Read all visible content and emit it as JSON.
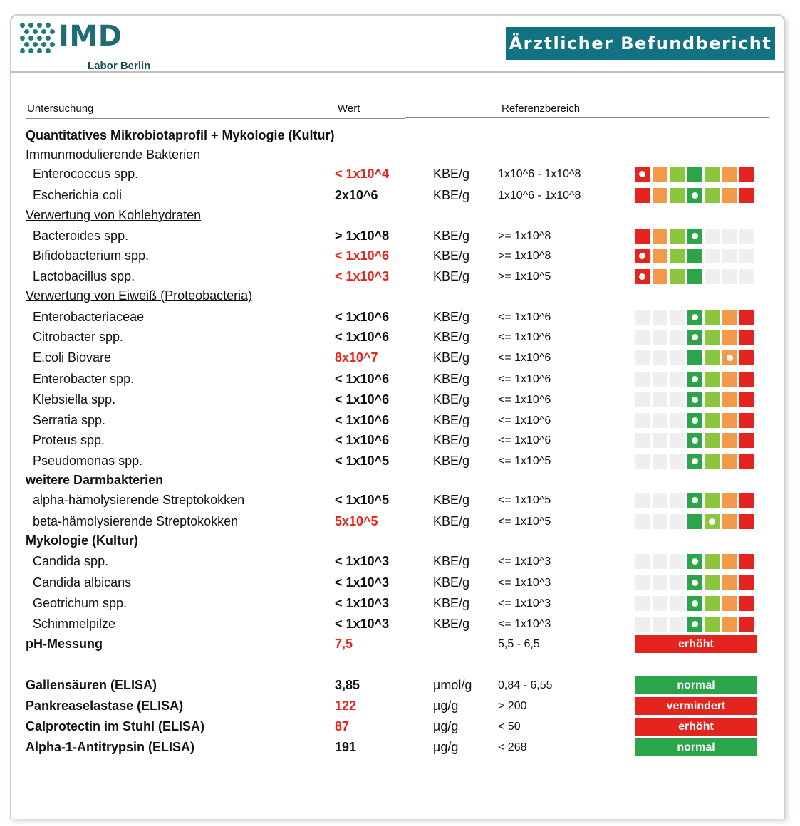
{
  "header": {
    "logo_name": "IMD",
    "logo_sub": "Labor Berlin",
    "title": "Ärztlicher Befundbericht"
  },
  "columns": {
    "test": "Untersuchung",
    "value": "Wert",
    "reference": "Referenzbereich"
  },
  "colors": {
    "red": "#e4241f",
    "orange": "#f29a4a",
    "lightgreen": "#8cc63f",
    "green": "#2ca44a",
    "empty": "#efefef",
    "teal": "#137282"
  },
  "rows": [
    {
      "kind": "section",
      "text": "Quantitatives Mikrobiotaprofil + Mykologie (Kultur)"
    },
    {
      "kind": "subsection",
      "text": "Immunmodulierende Bakterien"
    },
    {
      "kind": "item",
      "name": "Enterococcus spp.",
      "value": "< 1x10^4",
      "flag": true,
      "unit": "KBE/g",
      "ref": "1x10^6 - 1x10^8",
      "scale": "full",
      "marker": 0
    },
    {
      "kind": "item",
      "name": "Escherichia coli",
      "value": "2x10^6",
      "flag": false,
      "unit": "KBE/g",
      "ref": "1x10^6 - 1x10^8",
      "scale": "full",
      "marker": 3
    },
    {
      "kind": "subsection",
      "text": "Verwertung von Kohlehydraten"
    },
    {
      "kind": "item",
      "name": "Bacteroides spp.",
      "value": "> 1x10^8",
      "flag": false,
      "unit": "KBE/g",
      "ref": ">= 1x10^8",
      "scale": "low",
      "marker": 3
    },
    {
      "kind": "item",
      "name": "Bifidobacterium spp.",
      "value": "< 1x10^6",
      "flag": true,
      "unit": "KBE/g",
      "ref": ">= 1x10^8",
      "scale": "low",
      "marker": 0
    },
    {
      "kind": "item",
      "name": "Lactobacillus spp.",
      "value": "< 1x10^3",
      "flag": true,
      "unit": "KBE/g",
      "ref": ">= 1x10^5",
      "scale": "low",
      "marker": 0
    },
    {
      "kind": "subsection",
      "text": "Verwertung von Eiweiß (Proteobacteria)"
    },
    {
      "kind": "item",
      "name": "Enterobacteriaceae",
      "value": "< 1x10^6",
      "flag": false,
      "unit": "KBE/g",
      "ref": "<= 1x10^6",
      "scale": "high",
      "marker": 3
    },
    {
      "kind": "item",
      "name": "Citrobacter spp.",
      "value": "< 1x10^6",
      "flag": false,
      "unit": "KBE/g",
      "ref": "<= 1x10^6",
      "scale": "high",
      "marker": 3
    },
    {
      "kind": "item",
      "name": "E.coli Biovare",
      "value": "8x10^7",
      "flag": true,
      "unit": "KBE/g",
      "ref": "<= 1x10^6",
      "scale": "high",
      "marker": 5
    },
    {
      "kind": "item",
      "name": "Enterobacter spp.",
      "value": "< 1x10^6",
      "flag": false,
      "unit": "KBE/g",
      "ref": "<= 1x10^6",
      "scale": "high",
      "marker": 3
    },
    {
      "kind": "item",
      "name": "Klebsiella spp.",
      "value": "< 1x10^6",
      "flag": false,
      "unit": "KBE/g",
      "ref": "<= 1x10^6",
      "scale": "high",
      "marker": 3
    },
    {
      "kind": "item",
      "name": "Serratia spp.",
      "value": "< 1x10^6",
      "flag": false,
      "unit": "KBE/g",
      "ref": "<= 1x10^6",
      "scale": "high",
      "marker": 3
    },
    {
      "kind": "item",
      "name": "Proteus spp.",
      "value": "< 1x10^6",
      "flag": false,
      "unit": "KBE/g",
      "ref": "<= 1x10^6",
      "scale": "high",
      "marker": 3
    },
    {
      "kind": "item",
      "name": "Pseudomonas spp.",
      "value": "< 1x10^5",
      "flag": false,
      "unit": "KBE/g",
      "ref": "<= 1x10^5",
      "scale": "high",
      "marker": 3
    },
    {
      "kind": "section",
      "text": "weitere Darmbakterien"
    },
    {
      "kind": "item",
      "name": "alpha-hämolysierende Streptokokken",
      "value": "< 1x10^5",
      "flag": false,
      "unit": "KBE/g",
      "ref": "<= 1x10^5",
      "scale": "high",
      "marker": 3
    },
    {
      "kind": "item",
      "name": "beta-hämolysierende Streptokokken",
      "value": "5x10^5",
      "flag": true,
      "unit": "KBE/g",
      "ref": "<= 1x10^5",
      "scale": "high",
      "marker": 4
    },
    {
      "kind": "section",
      "text": "Mykologie (Kultur)"
    },
    {
      "kind": "item",
      "name": "Candida spp.",
      "value": "< 1x10^3",
      "flag": false,
      "unit": "KBE/g",
      "ref": "<= 1x10^3",
      "scale": "high",
      "marker": 3
    },
    {
      "kind": "item",
      "name": "Candida albicans",
      "value": "< 1x10^3",
      "flag": false,
      "unit": "KBE/g",
      "ref": "<= 1x10^3",
      "scale": "high",
      "marker": 3
    },
    {
      "kind": "item",
      "name": "Geotrichum spp.",
      "value": "< 1x10^3",
      "flag": false,
      "unit": "KBE/g",
      "ref": "<= 1x10^3",
      "scale": "high",
      "marker": 3
    },
    {
      "kind": "item",
      "name": "Schimmelpilze",
      "value": "< 1x10^3",
      "flag": false,
      "unit": "KBE/g",
      "ref": "<= 1x10^3",
      "scale": "high",
      "marker": 3
    },
    {
      "kind": "itemstatus",
      "bold": true,
      "name": "pH-Messung",
      "value": "7,5",
      "flag": true,
      "unit": "",
      "ref": "5,5 - 6,5",
      "status": "erhöht",
      "status_color": "#e4241f"
    },
    {
      "kind": "divider"
    },
    {
      "kind": "itemstatus",
      "bold": true,
      "name": "Gallensäuren (ELISA)",
      "value": "3,85",
      "flag": false,
      "unit": "µmol/g",
      "ref": "0,84 - 6,55",
      "status": "normal",
      "status_color": "#2ca44a"
    },
    {
      "kind": "itemstatus",
      "bold": true,
      "name": "Pankreaselastase (ELISA)",
      "value": "122",
      "flag": true,
      "unit": "µg/g",
      "ref": "> 200",
      "status": "vermindert",
      "status_color": "#e4241f"
    },
    {
      "kind": "itemstatus",
      "bold": true,
      "name": "Calprotectin im Stuhl (ELISA)",
      "value": "87",
      "flag": true,
      "unit": "µg/g",
      "ref": "< 50",
      "status": "erhöht",
      "status_color": "#e4241f"
    },
    {
      "kind": "itemstatus",
      "bold": true,
      "name": "Alpha-1-Antitrypsin (ELISA)",
      "value": "191",
      "flag": false,
      "unit": "µg/g",
      "ref": "< 268",
      "status": "normal",
      "status_color": "#2ca44a"
    }
  ]
}
